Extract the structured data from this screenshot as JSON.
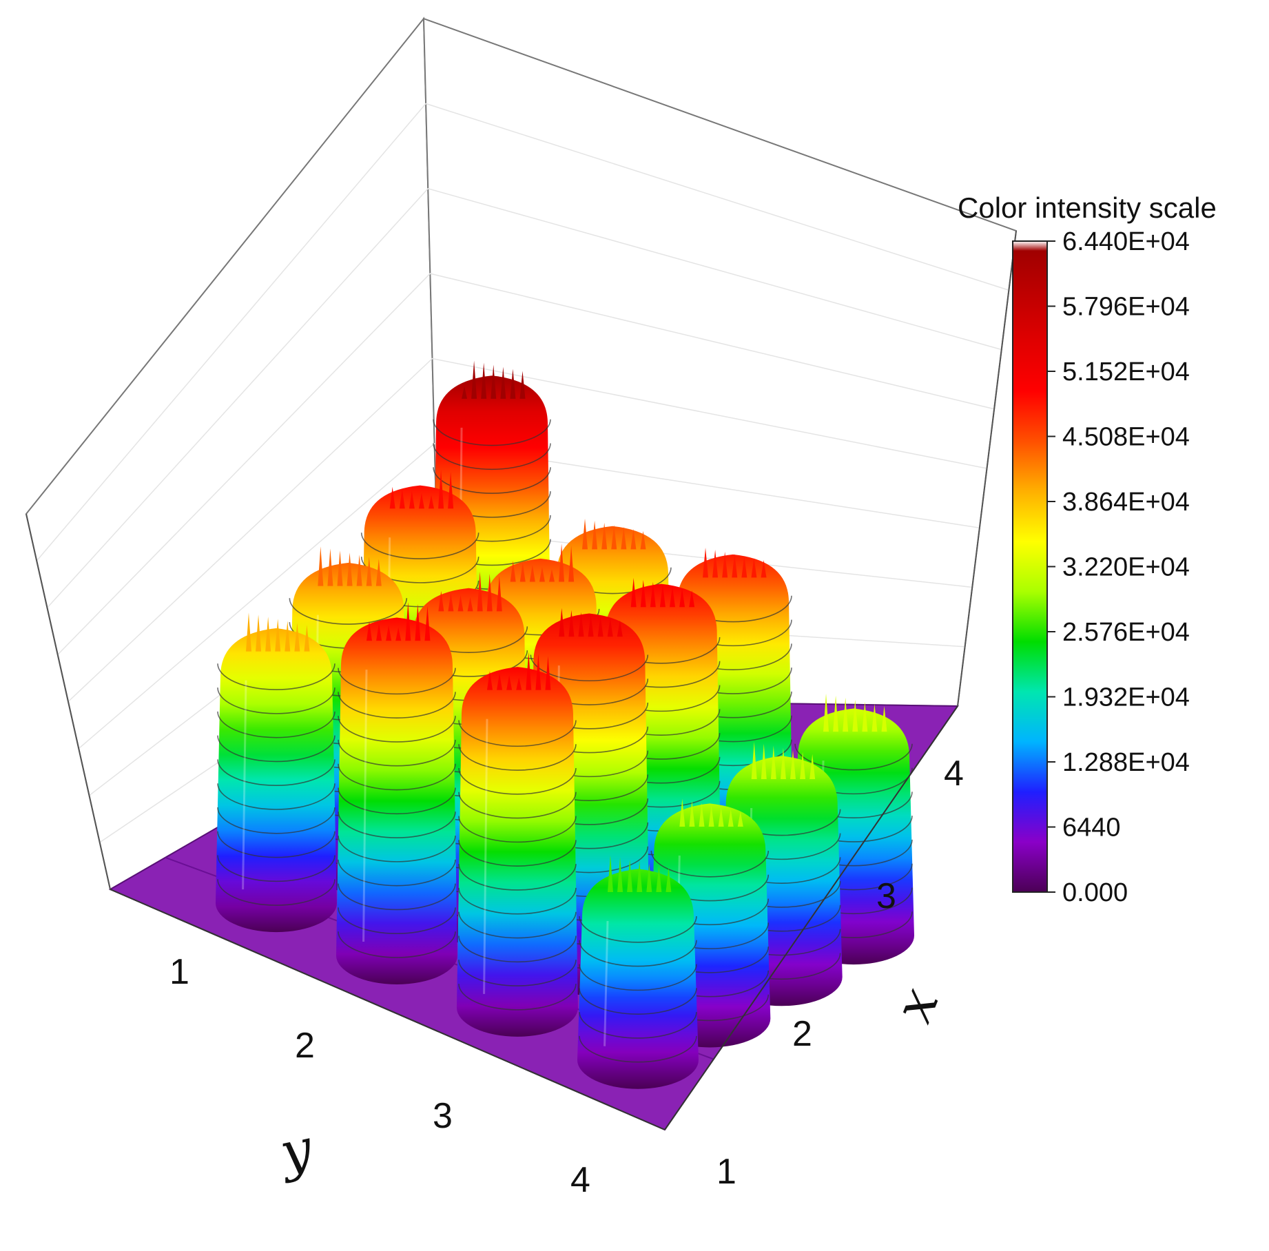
{
  "chart_data": {
    "type": "surface3d",
    "title": "",
    "xlabel": "x",
    "ylabel": "y",
    "x_ticks": [
      "1",
      "2",
      "3",
      "4"
    ],
    "y_ticks": [
      "1",
      "2",
      "3",
      "4"
    ],
    "colorbar": {
      "title": "Color intensity scale",
      "ticks": [
        "0.000",
        "6440",
        "1.288E+04",
        "1.932E+04",
        "2.576E+04",
        "3.220E+04",
        "3.864E+04",
        "4.508E+04",
        "5.152E+04",
        "5.796E+04",
        "6.440E+04"
      ],
      "range": [
        0,
        64400
      ],
      "colors": [
        "#4b0055",
        "#8a00c8",
        "#1f1fff",
        "#00b4ff",
        "#00e6b0",
        "#00dd00",
        "#aaff00",
        "#ffff00",
        "#ffb000",
        "#ff5000",
        "#ff0000",
        "#e00000",
        "#a00000",
        "#ffffff"
      ]
    },
    "peaks": [
      {
        "x": 1,
        "y": 1,
        "z": 64400
      },
      {
        "x": 2,
        "y": 1,
        "z": 53000
      },
      {
        "x": 3,
        "y": 1,
        "z": 47000
      },
      {
        "x": 4,
        "y": 1,
        "z": 43000
      },
      {
        "x": 1,
        "y": 2,
        "z": 48000
      },
      {
        "x": 2,
        "y": 2,
        "z": 49500
      },
      {
        "x": 3,
        "y": 2,
        "z": 51500
      },
      {
        "x": 4,
        "y": 2,
        "z": 53500
      },
      {
        "x": 1,
        "y": 3,
        "z": 52000
      },
      {
        "x": 2,
        "y": 3,
        "z": 54000
      },
      {
        "x": 3,
        "y": 3,
        "z": 56000
      },
      {
        "x": 4,
        "y": 3,
        "z": 54000
      },
      {
        "x": 1,
        "y": 4,
        "z": 35000
      },
      {
        "x": 2,
        "y": 4,
        "z": 34000
      },
      {
        "x": 3,
        "y": 4,
        "z": 33000
      },
      {
        "x": 4,
        "y": 4,
        "z": 29000
      }
    ]
  }
}
